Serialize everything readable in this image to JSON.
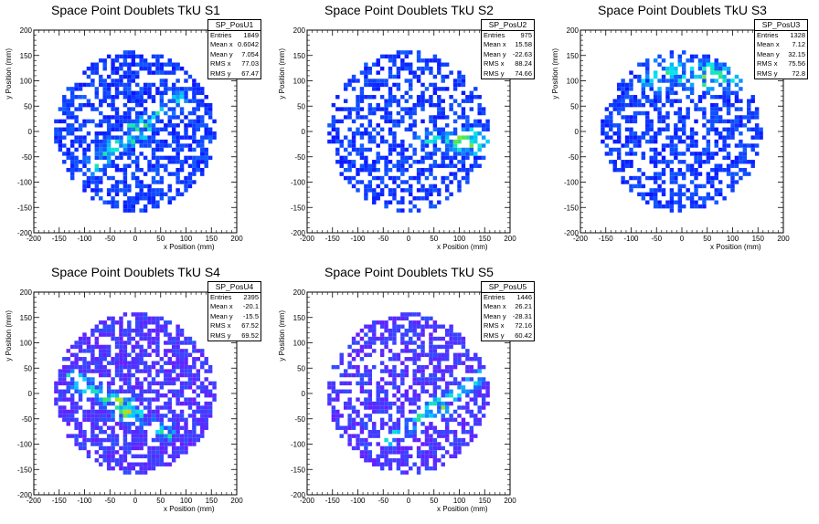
{
  "chart_data": [
    {
      "type": "heatmap",
      "title": "Space Point Doublets TkU S1",
      "xlabel": "x Position (mm)",
      "ylabel": "y Position (mm)",
      "xlim": [
        -200,
        200
      ],
      "ylim": [
        -200,
        200
      ],
      "xticks": [
        "-200",
        "-150",
        "-100",
        "-50",
        "0",
        "50",
        "100",
        "150",
        "200"
      ],
      "yticks": [
        "-200",
        "-150",
        "-100",
        "-50",
        "0",
        "50",
        "100",
        "150",
        "200"
      ],
      "stats": {
        "name": "SP_PosU1",
        "entries_label": "Entries",
        "entries": "1849",
        "meanx_label": "Mean x",
        "meanx": "0.6042",
        "meany_label": "Mean y",
        "meany": "7.054",
        "rmsx_label": "RMS x",
        "rmsx": "77.03",
        "rmsy_label": "RMS y",
        "rmsy": "67.47"
      },
      "palette": "rainbow",
      "hotspot": {
        "x_center": 0,
        "y_center": 0,
        "band_slope": 0.8,
        "band_width": 25
      },
      "entries": 1849
    },
    {
      "type": "heatmap",
      "title": "Space Point Doublets TkU S2",
      "xlabel": "x Position (mm)",
      "ylabel": "y Position (mm)",
      "xlim": [
        -200,
        200
      ],
      "ylim": [
        -200,
        200
      ],
      "xticks": [
        "-200",
        "-150",
        "-100",
        "-50",
        "0",
        "50",
        "100",
        "150",
        "200"
      ],
      "yticks": [
        "-200",
        "-150",
        "-100",
        "-50",
        "0",
        "50",
        "100",
        "150",
        "200"
      ],
      "stats": {
        "name": "SP_PosU2",
        "entries_label": "Entries",
        "entries": "975",
        "meanx_label": "Mean x",
        "meanx": "15.58",
        "meany_label": "Mean y",
        "meany": "-22.63",
        "rmsx_label": "RMS x",
        "rmsx": "88.24",
        "rmsy_label": "RMS y",
        "rmsy": "74.66"
      },
      "palette": "rainbow",
      "hotspot": {
        "x_center": 120,
        "y_center": -20,
        "band_slope": 0,
        "band_width": 30
      },
      "entries": 975
    },
    {
      "type": "heatmap",
      "title": "Space Point Doublets TkU S3",
      "xlabel": "x Position (mm)",
      "ylabel": "y Position (mm)",
      "xlim": [
        -200,
        200
      ],
      "ylim": [
        -200,
        200
      ],
      "xticks": [
        "-200",
        "-150",
        "-100",
        "-50",
        "0",
        "50",
        "100",
        "150",
        "200"
      ],
      "yticks": [
        "-200",
        "-150",
        "-100",
        "-50",
        "0",
        "50",
        "100",
        "150",
        "200"
      ],
      "stats": {
        "name": "SP_PosU3",
        "entries_label": "Entries",
        "entries": "1328",
        "meanx_label": "Mean x",
        "meanx": "7.12",
        "meany_label": "Mean y",
        "meany": "32.15",
        "rmsx_label": "RMS x",
        "rmsx": "75.56",
        "rmsy_label": "RMS y",
        "rmsy": "72.8"
      },
      "palette": "rainbow",
      "hotspot": {
        "x_center": 40,
        "y_center": 110,
        "band_slope": 0,
        "band_width": 40
      },
      "entries": 1328
    },
    {
      "type": "heatmap",
      "title": "Space Point Doublets TkU S4",
      "xlabel": "x Position (mm)",
      "ylabel": "y Position (mm)",
      "xlim": [
        -200,
        200
      ],
      "ylim": [
        -200,
        200
      ],
      "xticks": [
        "-200",
        "-150",
        "-100",
        "-50",
        "0",
        "50",
        "100",
        "150",
        "200"
      ],
      "yticks": [
        "-200",
        "-150",
        "-100",
        "-50",
        "0",
        "50",
        "100",
        "150",
        "200"
      ],
      "stats": {
        "name": "SP_PosU4",
        "entries_label": "Entries",
        "entries": "2395",
        "meanx_label": "Mean x",
        "meanx": "-20.1",
        "meany_label": "Mean y",
        "meany": "-15.5",
        "rmsx_label": "RMS x",
        "rmsx": "67.52",
        "rmsy_label": "RMS y",
        "rmsy": "69.52"
      },
      "palette": "purple-rainbow",
      "hotspot": {
        "x_center": -30,
        "y_center": -25,
        "band_slope": -0.6,
        "band_width": 25
      },
      "entries": 2395
    },
    {
      "type": "heatmap",
      "title": "Space Point Doublets TkU S5",
      "xlabel": "x Position (mm)",
      "ylabel": "y Position (mm)",
      "xlim": [
        -200,
        200
      ],
      "ylim": [
        -200,
        200
      ],
      "xticks": [
        "-200",
        "-150",
        "-100",
        "-50",
        "0",
        "50",
        "100",
        "150",
        "200"
      ],
      "yticks": [
        "-200",
        "-150",
        "-100",
        "-50",
        "0",
        "50",
        "100",
        "150",
        "200"
      ],
      "stats": {
        "name": "SP_PosU5",
        "entries_label": "Entries",
        "entries": "1446",
        "meanx_label": "Mean x",
        "meanx": "26.21",
        "meany_label": "Mean y",
        "meany": "-28.31",
        "rmsx_label": "RMS x",
        "rmsx": "72.16",
        "rmsy_label": "RMS y",
        "rmsy": "60.42"
      },
      "palette": "purple-rainbow",
      "hotspot": {
        "x_center": 50,
        "y_center": -30,
        "band_slope": 0.7,
        "band_width": 22
      },
      "entries": 1446
    }
  ],
  "colors": {
    "frame": "#000000",
    "background": "#ffffff",
    "palette_low": "#0000ff",
    "palette_low_alt": "#6a1bff",
    "palette_high": "#ff0000"
  }
}
